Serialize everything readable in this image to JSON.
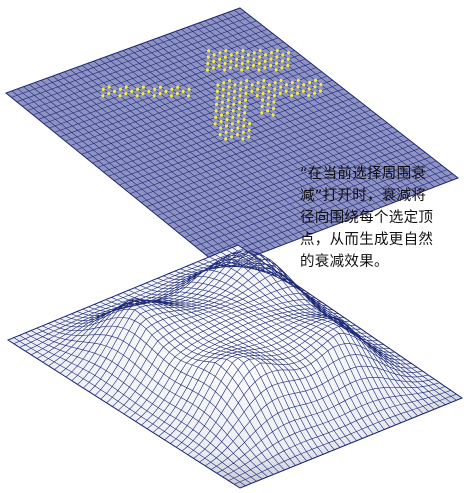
{
  "caption": {
    "lines": [
      "“在当前选择周围衰",
      "减”打开时，衰减将",
      "径向围绕每个选定顶",
      "点，从而生成更自然",
      "的衰减效果。"
    ]
  },
  "colors": {
    "grid_line": "#1e2a78",
    "plane_fill": "#8f93c4",
    "selected_vertex": "#f2ee3a",
    "surface_light": "#ffffff",
    "surface_shade": "#b8bac8"
  },
  "figures": {
    "top": {
      "name": "flat-plane-with-selection"
    },
    "bottom": {
      "name": "deformed-surface-soft-falloff"
    }
  }
}
